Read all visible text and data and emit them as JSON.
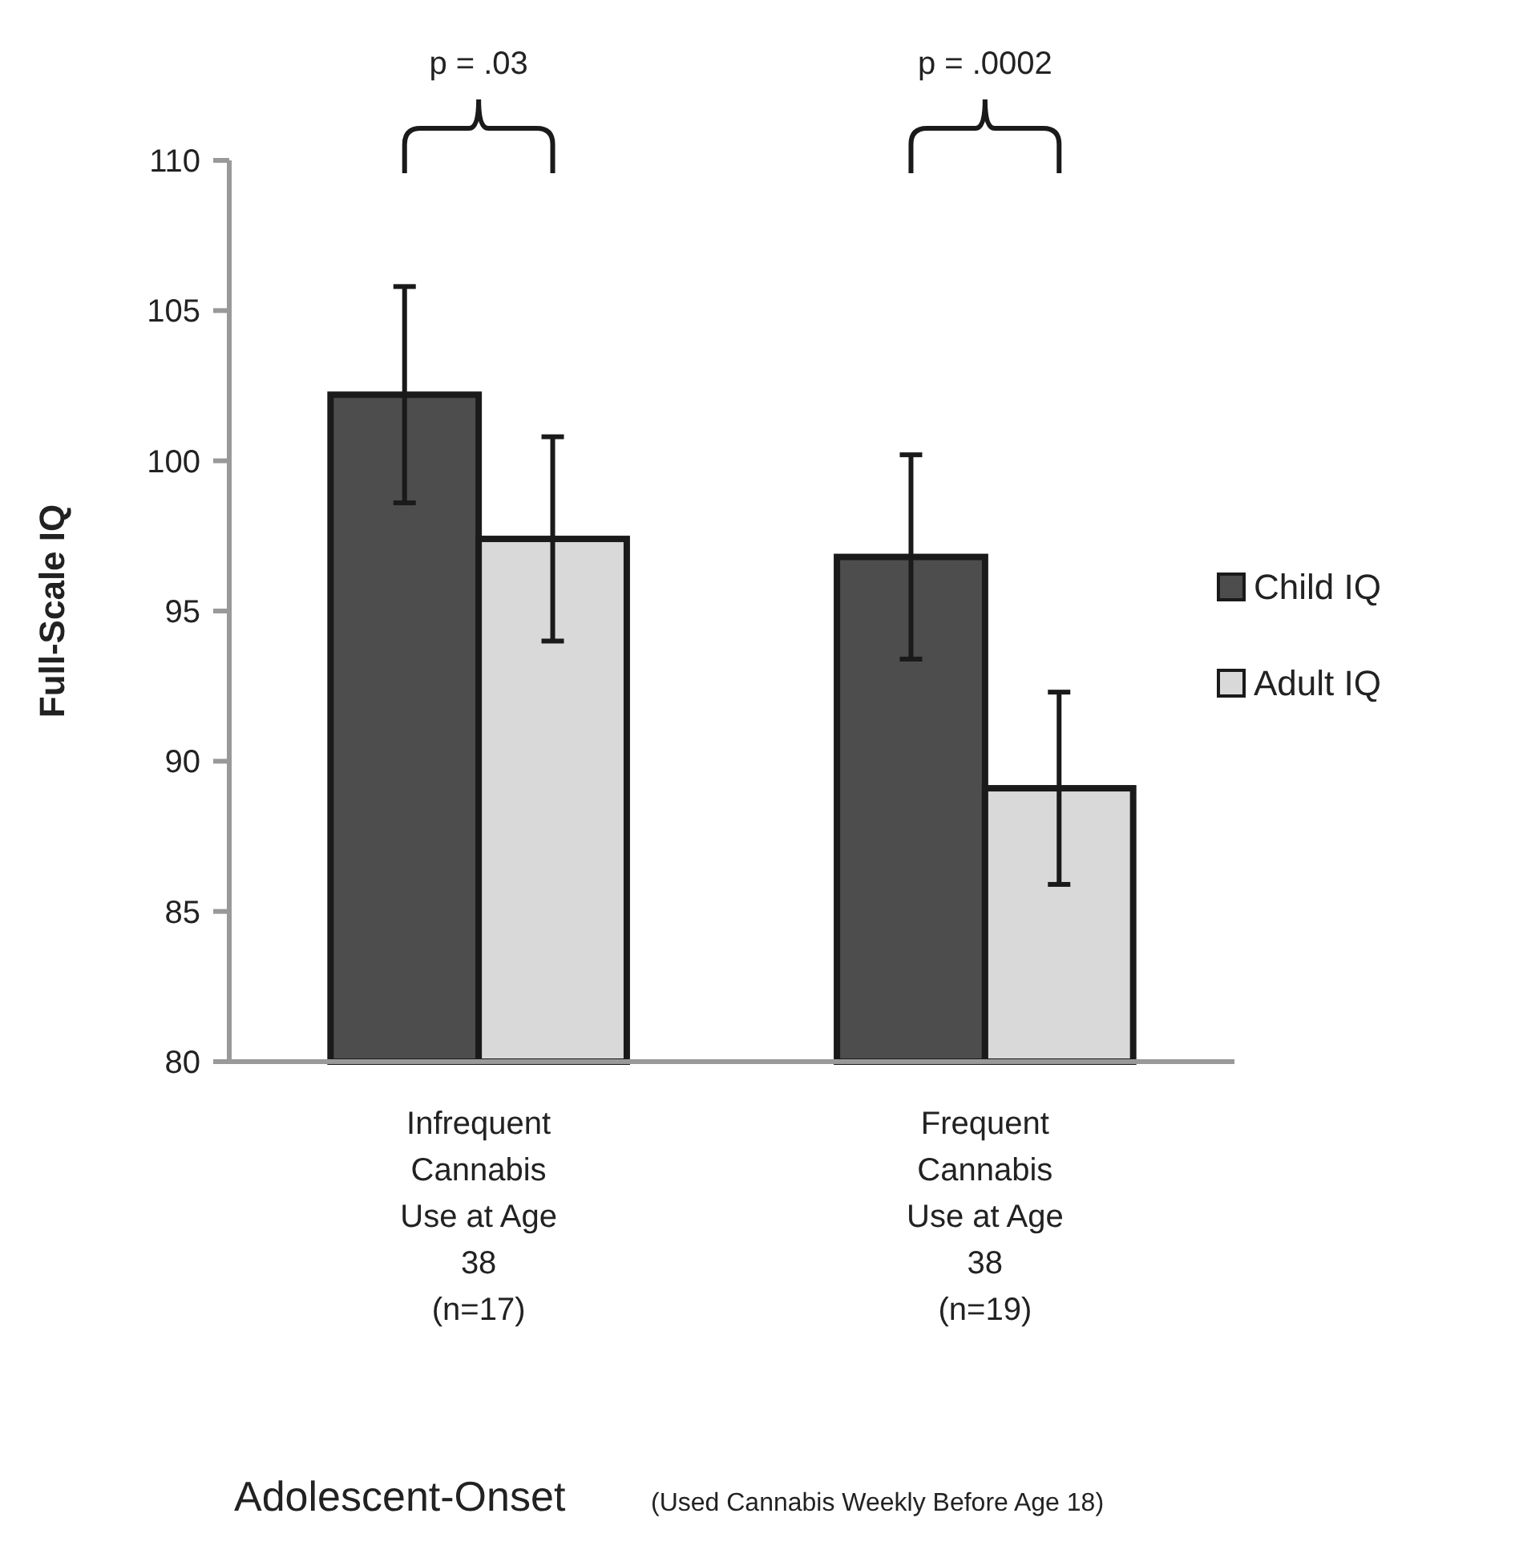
{
  "chart_data": {
    "type": "bar",
    "categories": [
      "Infrequent\nCannabis\nUse at Age\n38\n(n=17)",
      "Frequent\nCannabis\nUse at Age\n38\n(n=19)"
    ],
    "ylabel": "Full-Scale IQ",
    "xlabel": "Adolescent-Onset",
    "ylim": [
      80,
      110
    ],
    "yticks": [
      80,
      85,
      90,
      95,
      100,
      105,
      110
    ],
    "grid": false,
    "legend": "right",
    "series": [
      {
        "name": "Child IQ",
        "color": "#4d4d4d",
        "values": [
          102.2,
          96.8
        ],
        "errors": [
          3.6,
          3.4
        ]
      },
      {
        "name": "Adult IQ",
        "color": "#d9d9d9",
        "values": [
          97.4,
          89.1
        ],
        "errors": [
          3.4,
          3.2
        ]
      }
    ],
    "annotations": [
      "p = .03",
      "p = .0002",
      "(Used Cannabis Weekly Before Age 18)"
    ]
  }
}
